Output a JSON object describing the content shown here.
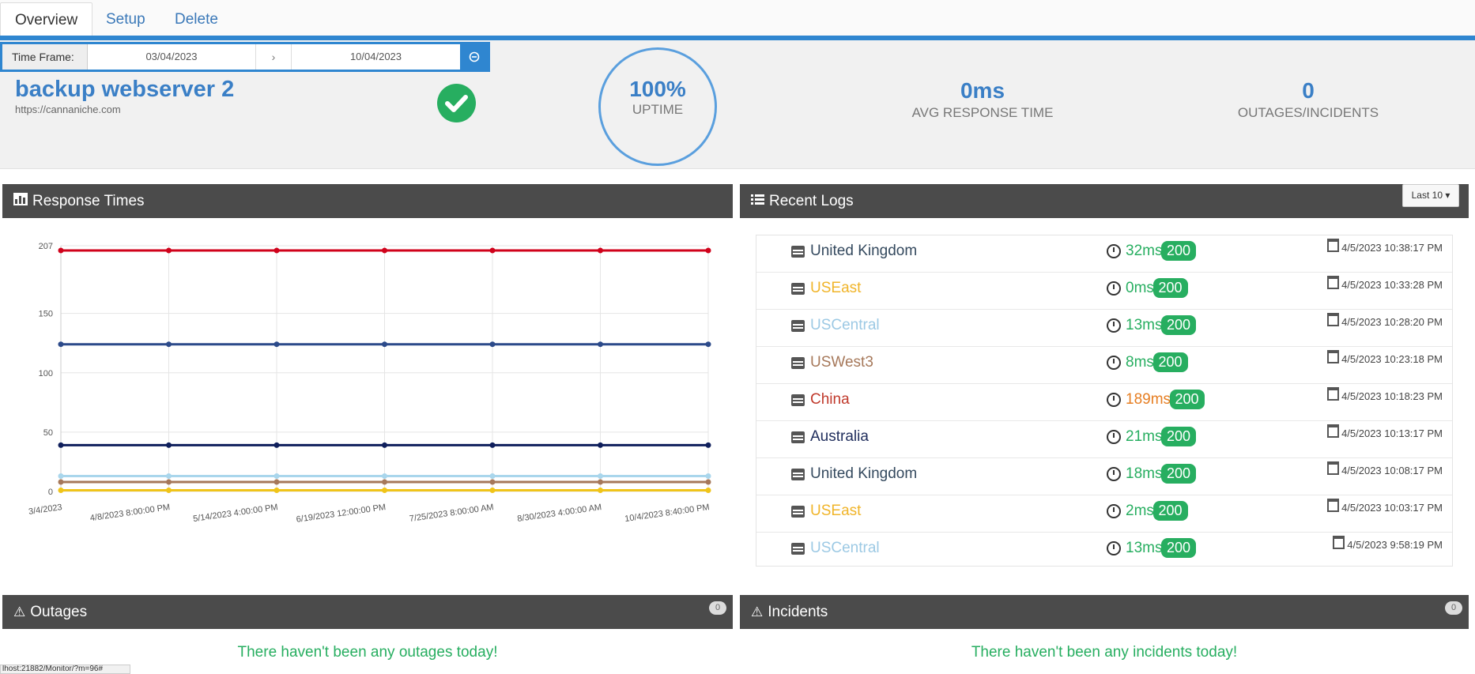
{
  "tabs": [
    {
      "label": "Overview",
      "active": true
    },
    {
      "label": "Setup",
      "active": false
    },
    {
      "label": "Delete",
      "active": false
    }
  ],
  "timeframe": {
    "label": "Time Frame:",
    "start": "03/04/2023",
    "arrow": "›",
    "end": "10/04/2023"
  },
  "monitor": {
    "name": "backup webserver 2",
    "url": "https://cannaniche.com"
  },
  "stats": {
    "uptime_value": "100%",
    "uptime_label": "UPTIME",
    "avg_response_value": "0ms",
    "avg_response_label": "AVG RESPONSE TIME",
    "outages_value": "0",
    "outages_label": "OUTAGES/INCIDENTS"
  },
  "response_panel": {
    "title": "Response Times",
    "icon": "bar-chart-icon"
  },
  "logs_panel": {
    "title": "Recent Logs",
    "icon": "list-icon",
    "filter_label": "Last 10 ▾"
  },
  "logs": [
    {
      "location": "United Kingdom",
      "loc_color": "#34495e",
      "ms": "32ms",
      "ms_color": "#27ae60",
      "code": "200",
      "date": "4/5/2023 10:38:17 PM"
    },
    {
      "location": "USEast",
      "loc_color": "#f0b429",
      "ms": "0ms",
      "ms_color": "#27ae60",
      "code": "200",
      "date": "4/5/2023 10:33:28 PM"
    },
    {
      "location": "USCentral",
      "loc_color": "#9cc9e4",
      "ms": "13ms",
      "ms_color": "#27ae60",
      "code": "200",
      "date": "4/5/2023 10:28:20 PM"
    },
    {
      "location": "USWest3",
      "loc_color": "#a6785a",
      "ms": "8ms",
      "ms_color": "#27ae60",
      "code": "200",
      "date": "4/5/2023 10:23:18 PM"
    },
    {
      "location": "China",
      "loc_color": "#c0392b",
      "ms": "189ms",
      "ms_color": "#e67e22",
      "code": "200",
      "date": "4/5/2023 10:18:23 PM"
    },
    {
      "location": "Australia",
      "loc_color": "#1f2d5c",
      "ms": "21ms",
      "ms_color": "#27ae60",
      "code": "200",
      "date": "4/5/2023 10:13:17 PM"
    },
    {
      "location": "United Kingdom",
      "loc_color": "#34495e",
      "ms": "18ms",
      "ms_color": "#27ae60",
      "code": "200",
      "date": "4/5/2023 10:08:17 PM"
    },
    {
      "location": "USEast",
      "loc_color": "#f0b429",
      "ms": "2ms",
      "ms_color": "#27ae60",
      "code": "200",
      "date": "4/5/2023 10:03:17 PM"
    },
    {
      "location": "USCentral",
      "loc_color": "#9cc9e4",
      "ms": "13ms",
      "ms_color": "#27ae60",
      "code": "200",
      "date": "4/5/2023 9:58:19 PM"
    }
  ],
  "outages_panel": {
    "title": "Outages",
    "badge": "0",
    "message": "There haven't been any outages today!"
  },
  "incidents_panel": {
    "title": "Incidents",
    "badge": "0",
    "message": "There haven't been any incidents today!"
  },
  "status_bar": "lhost:21882/Monitor/?m=96#",
  "chart_data": {
    "type": "line",
    "x": [
      "3/4/2023",
      "4/8/2023 8:00:00 PM",
      "5/14/2023 4:00:00 PM",
      "6/19/2023 12:00:00 PM",
      "7/25/2023 8:00:00 AM",
      "8/30/2023 4:00:00 AM",
      "10/4/2023 8:40:00 PM"
    ],
    "yticks": [
      0,
      50,
      100,
      150,
      207
    ],
    "ylim": [
      0,
      207
    ],
    "grid": true,
    "series": [
      {
        "color": "#d0021b",
        "values": [
          203,
          203,
          203,
          203,
          203,
          203,
          203
        ]
      },
      {
        "color": "#2c4a8a",
        "values": [
          124,
          124,
          124,
          124,
          124,
          124,
          124
        ]
      },
      {
        "color": "#0f1f5c",
        "values": [
          39,
          39,
          39,
          39,
          39,
          39,
          39
        ]
      },
      {
        "color": "#a9d6ec",
        "values": [
          13,
          13,
          13,
          13,
          13,
          13,
          13
        ]
      },
      {
        "color": "#a6785a",
        "values": [
          8,
          8,
          8,
          8,
          8,
          8,
          8
        ]
      },
      {
        "color": "#f0c419",
        "values": [
          1,
          1,
          1,
          1,
          1,
          1,
          1
        ]
      }
    ]
  }
}
